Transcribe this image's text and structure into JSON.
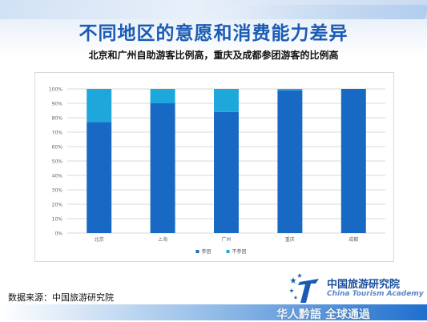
{
  "slide": {
    "title": "不同地区的意愿和消费能力差异",
    "subtitle": "北京和广州自助游客比例高，重庆及成都参团游客的比例高",
    "source": "数据来源：中国旅游研究院",
    "watermark": "华人黔語 全球通過",
    "logo": {
      "name_cn": "中国旅游研究院",
      "name_en": "China Tourism Academy"
    }
  },
  "colors": {
    "title": "#1a5cb4",
    "group_tour": "#1769c4",
    "independent": "#1ea7db",
    "grid": "#d9d9d9"
  },
  "chart_data": {
    "type": "bar",
    "stacked": true,
    "title": "",
    "xlabel": "",
    "ylabel": "",
    "categories": [
      "北京",
      "上海",
      "广州",
      "重庆",
      "成都"
    ],
    "series": [
      {
        "name": "参团",
        "values": [
          77,
          90,
          84,
          99,
          100
        ]
      },
      {
        "name": "不参团",
        "values": [
          23,
          10,
          16,
          1,
          0
        ]
      }
    ],
    "y_ticks": [
      "0%",
      "10%",
      "20%",
      "30%",
      "40%",
      "50%",
      "60%",
      "70%",
      "80%",
      "90%",
      "100%"
    ],
    "ylim": [
      0,
      100
    ],
    "grid": true,
    "legend_position": "bottom-center"
  }
}
